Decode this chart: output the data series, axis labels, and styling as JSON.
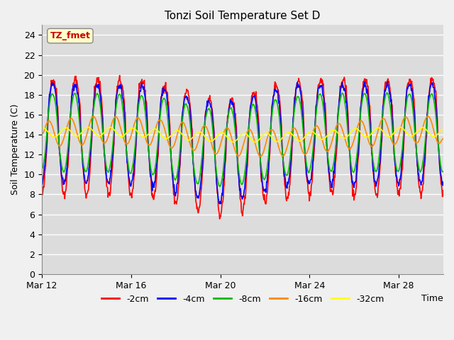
{
  "title": "Tonzi Soil Temperature Set D",
  "xlabel": "Time",
  "ylabel": "Soil Temperature (C)",
  "ylim": [
    0,
    25
  ],
  "yticks": [
    0,
    2,
    4,
    6,
    8,
    10,
    12,
    14,
    16,
    18,
    20,
    22,
    24
  ],
  "x_tick_labels": [
    "Mar 12",
    "Mar 16",
    "Mar 20",
    "Mar 24",
    "Mar 28"
  ],
  "x_tick_positions": [
    0,
    4,
    8,
    12,
    16
  ],
  "annotation_text": "TZ_fmet",
  "annotation_color": "#cc0000",
  "annotation_bg": "#ffffcc",
  "fig_bg": "#f0f0f0",
  "plot_bg": "#dcdcdc",
  "series_colors": [
    "#ff0000",
    "#0000ff",
    "#00bb00",
    "#ff8800",
    "#ffff00"
  ],
  "series_labels": [
    "-2cm",
    "-4cm",
    "-8cm",
    "-16cm",
    "-32cm"
  ],
  "linewidth": 1.2,
  "n_days": 18,
  "n_per_day": 48,
  "base_temp": 14.0
}
